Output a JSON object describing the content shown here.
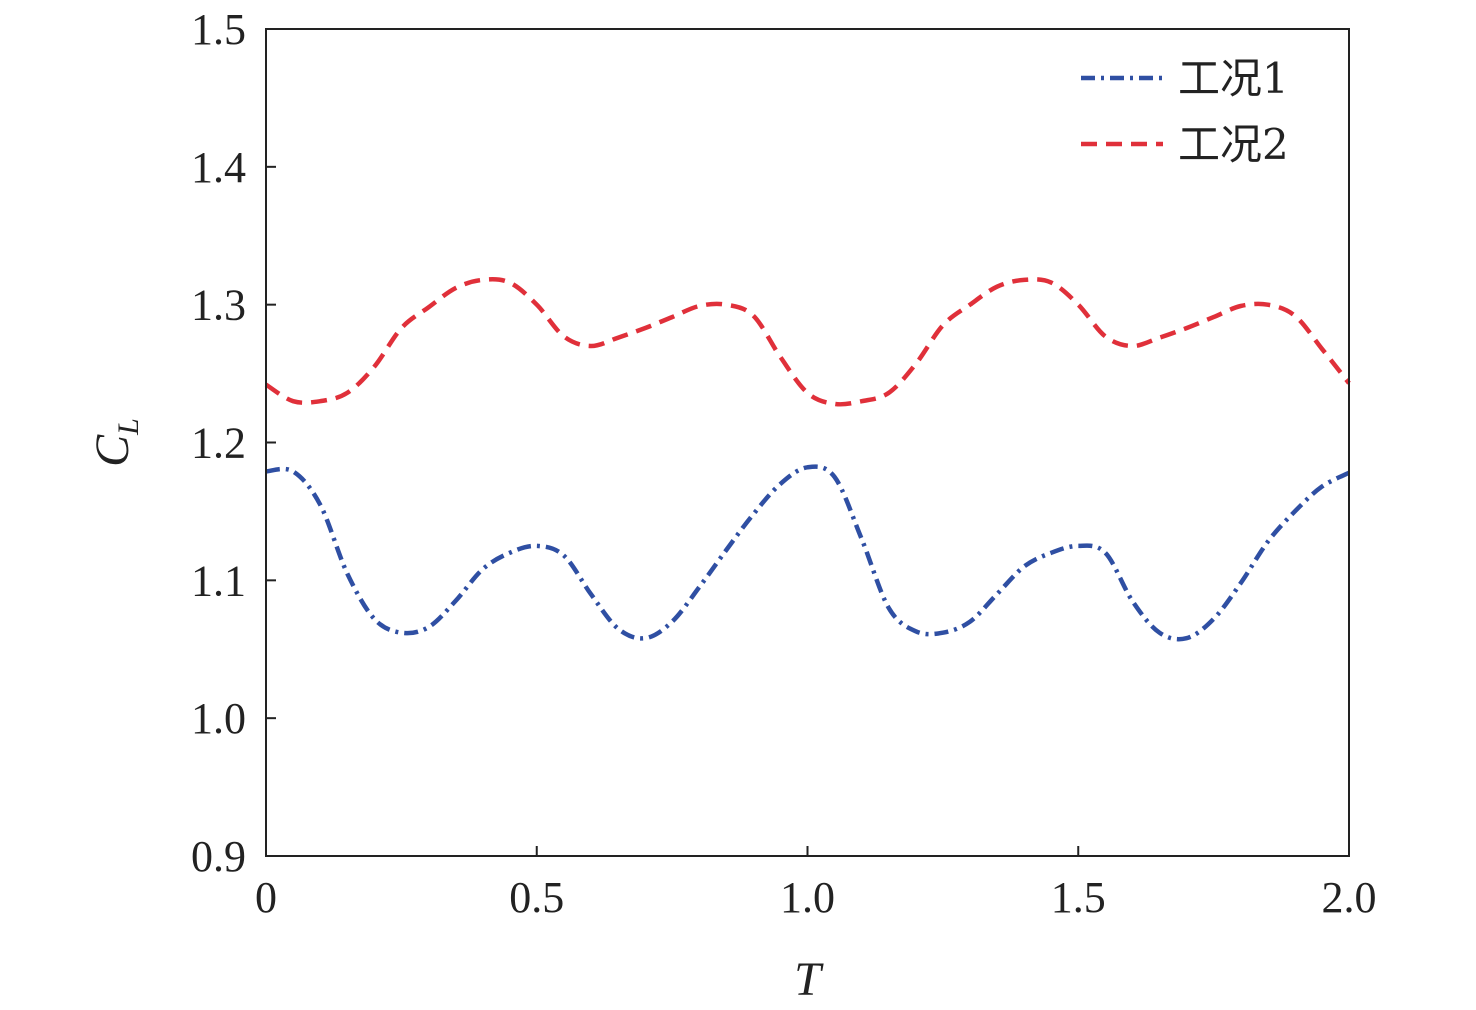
{
  "chart_data": {
    "type": "line",
    "xlabel": "T",
    "ylabel": {
      "main": "C",
      "sub": "L"
    },
    "xlim": [
      0,
      2.0
    ],
    "ylim": [
      0.9,
      1.5
    ],
    "x_ticks": [
      "0",
      "0.5",
      "1.0",
      "1.5",
      "2.0"
    ],
    "x_tick_values": [
      0,
      0.5,
      1.0,
      1.5,
      2.0
    ],
    "y_ticks": [
      "0.9",
      "1.0",
      "1.1",
      "1.2",
      "1.3",
      "1.4",
      "1.5"
    ],
    "y_tick_values": [
      0.9,
      1.0,
      1.1,
      1.2,
      1.3,
      1.4,
      1.5
    ],
    "grid": false,
    "legend_position": "top-right",
    "series": [
      {
        "name": "工况1",
        "color": "#2f4fa3",
        "style": "dash-dot",
        "x": [
          0,
          0.05,
          0.1,
          0.15,
          0.2,
          0.25,
          0.3,
          0.35,
          0.4,
          0.45,
          0.5,
          0.55,
          0.6,
          0.65,
          0.7,
          0.75,
          0.8,
          0.85,
          0.9,
          0.95,
          1.0,
          1.05,
          1.1,
          1.15,
          1.2,
          1.25,
          1.3,
          1.35,
          1.4,
          1.45,
          1.5,
          1.55,
          1.6,
          1.65,
          1.7,
          1.75,
          1.8,
          1.85,
          1.9,
          1.95,
          2.0
        ],
        "y": [
          1.179,
          1.179,
          1.155,
          1.105,
          1.072,
          1.062,
          1.066,
          1.085,
          1.108,
          1.12,
          1.125,
          1.118,
          1.09,
          1.065,
          1.058,
          1.07,
          1.095,
          1.122,
          1.148,
          1.17,
          1.182,
          1.175,
          1.13,
          1.08,
          1.063,
          1.062,
          1.07,
          1.09,
          1.11,
          1.12,
          1.125,
          1.12,
          1.085,
          1.062,
          1.058,
          1.072,
          1.098,
          1.128,
          1.15,
          1.168,
          1.178
        ]
      },
      {
        "name": "工况2",
        "color": "#e0303a",
        "style": "dashed",
        "x": [
          0,
          0.05,
          0.1,
          0.15,
          0.2,
          0.25,
          0.3,
          0.35,
          0.4,
          0.45,
          0.5,
          0.55,
          0.6,
          0.65,
          0.7,
          0.75,
          0.8,
          0.85,
          0.9,
          0.95,
          1.0,
          1.05,
          1.1,
          1.15,
          1.2,
          1.25,
          1.3,
          1.35,
          1.4,
          1.45,
          1.5,
          1.55,
          1.6,
          1.65,
          1.7,
          1.75,
          1.8,
          1.85,
          1.9,
          1.95,
          2.0
        ],
        "y": [
          1.242,
          1.23,
          1.23,
          1.236,
          1.255,
          1.283,
          1.298,
          1.312,
          1.318,
          1.316,
          1.3,
          1.277,
          1.27,
          1.276,
          1.283,
          1.291,
          1.299,
          1.3,
          1.292,
          1.262,
          1.236,
          1.228,
          1.23,
          1.236,
          1.257,
          1.285,
          1.3,
          1.313,
          1.318,
          1.316,
          1.3,
          1.277,
          1.27,
          1.276,
          1.283,
          1.291,
          1.299,
          1.3,
          1.292,
          1.268,
          1.243
        ]
      }
    ]
  }
}
